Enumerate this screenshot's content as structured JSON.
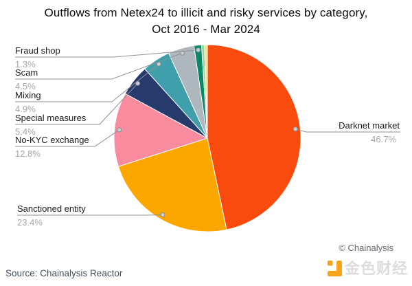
{
  "title": {
    "line1": "Outflows from Netex24 to illicit and risky services by category,",
    "line2": "Oct 2016 - Mar 2024"
  },
  "chart_data": {
    "type": "pie",
    "title": "Outflows from Netex24 to illicit and risky services by category, Oct 2016 - Mar 2024",
    "direction": "clockwise",
    "start_angle": "12 o'clock",
    "legend_position": "none",
    "slices": [
      {
        "id": "darknet-market",
        "label": "Darknet market",
        "value": 46.7,
        "pct_label": "46.7%",
        "color": "#F84B0D"
      },
      {
        "id": "sanctioned-entity",
        "label": "Sanctioned entity",
        "value": 23.4,
        "pct_label": "23.4%",
        "color": "#FBA700"
      },
      {
        "id": "no-kyc-exchange",
        "label": "No-KYC exchange",
        "value": 12.8,
        "pct_label": "12.8%",
        "color": "#F88C9E"
      },
      {
        "id": "special-measures",
        "label": "Special measures",
        "value": 5.4,
        "pct_label": "5.4%",
        "color": "#263A6C"
      },
      {
        "id": "mixing",
        "label": "Mixing",
        "value": 4.9,
        "pct_label": "4.9%",
        "color": "#3FA0AB"
      },
      {
        "id": "scam",
        "label": "Scam",
        "value": 4.5,
        "pct_label": "4.5%",
        "color": "#ADB7BD"
      },
      {
        "id": "fraud-shop",
        "label": "Fraud shop",
        "value": 1.3,
        "pct_label": "1.3%",
        "color": "#0A8763"
      },
      {
        "id": "unlabeled-sliver-1",
        "label": "",
        "value": 0.5,
        "pct_label": "",
        "color": "#8FD69B"
      },
      {
        "id": "unlabeled-sliver-2",
        "label": "",
        "value": 0.5,
        "pct_label": "",
        "color": "#EFE385"
      }
    ],
    "slice_border_color": "#FFFFFF",
    "leader_line_color": "#8C9196",
    "dot_fill": "#C9CED2",
    "dot_stroke": "#868D92",
    "label_color": "#1B1B1B",
    "pct_color": "#A6A6A6"
  },
  "footer": {
    "source": "Source: Chainalysis Reactor",
    "copyright": "© Chainalysis"
  },
  "watermark": {
    "text": "金色财经",
    "icon_color": "#F9A31B",
    "text_color": "#DCDCDC"
  }
}
